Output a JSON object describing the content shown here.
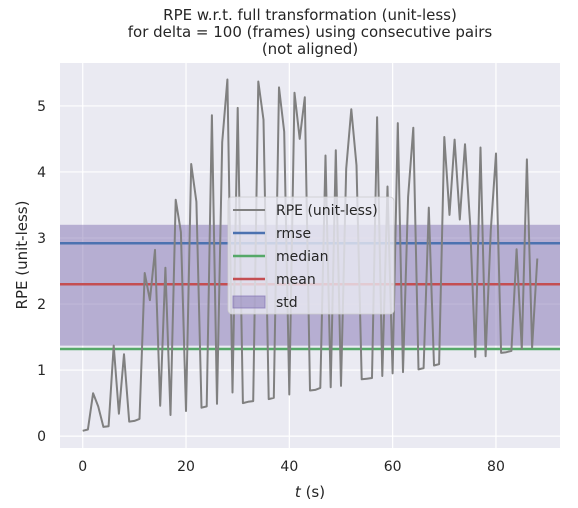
{
  "chart_data": {
    "type": "line",
    "title_lines": [
      "RPE w.r.t. full transformation (unit-less)",
      "for delta = 100 (frames) using consecutive pairs",
      "(not aligned)"
    ],
    "xlabel_italic": "t",
    "xlabel_rest": " (s)",
    "ylabel": "RPE (unit-less)",
    "xlim": [
      -4.4,
      92.4
    ],
    "ylim": [
      -0.18,
      5.65
    ],
    "xticks": [
      0,
      20,
      40,
      60,
      80
    ],
    "yticks": [
      0,
      1,
      2,
      3,
      4,
      5
    ],
    "grid": true,
    "background": "#eaeaf2",
    "series": [
      {
        "name": "RPE (unit-less)",
        "color": "#808080",
        "x": [
          0,
          1,
          2,
          3,
          4,
          5,
          6,
          7,
          8,
          9,
          10,
          11,
          12,
          13,
          14,
          15,
          16,
          17,
          18,
          19,
          20,
          21,
          22,
          23,
          24,
          25,
          26,
          27,
          28,
          29,
          30,
          31,
          32,
          33,
          34,
          35,
          36,
          37,
          38,
          39,
          40,
          41,
          42,
          43,
          44,
          45,
          46,
          47,
          48,
          49,
          50,
          51,
          52,
          53,
          54,
          55,
          56,
          57,
          58,
          59,
          60,
          61,
          62,
          63,
          64,
          65,
          66,
          67,
          68,
          69,
          70,
          71,
          72,
          73,
          74,
          75,
          76,
          77,
          78,
          79,
          80,
          81,
          82,
          83,
          84,
          85,
          86,
          87,
          88
        ],
        "y": [
          0.08,
          0.1,
          0.65,
          0.45,
          0.14,
          0.15,
          1.37,
          0.34,
          1.24,
          0.22,
          0.23,
          0.26,
          2.47,
          2.06,
          2.82,
          0.46,
          2.55,
          0.32,
          3.58,
          3.09,
          0.38,
          4.12,
          3.55,
          0.43,
          0.45,
          4.86,
          0.49,
          4.45,
          5.4,
          0.66,
          4.97,
          0.5,
          0.52,
          0.53,
          5.37,
          4.79,
          0.56,
          0.58,
          5.28,
          4.61,
          0.63,
          5.2,
          4.5,
          5.13,
          0.69,
          0.7,
          0.73,
          4.25,
          0.74,
          4.33,
          0.76,
          4.05,
          4.95,
          4.1,
          0.86,
          0.87,
          0.88,
          4.83,
          0.91,
          3.78,
          0.95,
          4.74,
          0.97,
          3.62,
          4.67,
          1.01,
          1.03,
          3.46,
          1.07,
          1.09,
          4.53,
          3.35,
          4.49,
          3.28,
          4.42,
          3.22,
          1.2,
          4.37,
          1.21,
          3.12,
          4.28,
          1.26,
          1.27,
          1.29,
          2.83,
          1.32,
          4.19,
          1.34,
          2.69
        ]
      }
    ],
    "stats": {
      "rmse": {
        "label": "rmse",
        "value": 2.92,
        "color": "#4c72b0"
      },
      "median": {
        "label": "median",
        "value": 1.32,
        "color": "#55a868"
      },
      "mean": {
        "label": "mean",
        "value": 2.3,
        "color": "#c44e52"
      },
      "std": {
        "label": "std",
        "low": 1.37,
        "high": 3.2,
        "color": "#8172b2"
      }
    },
    "legend_position": "center",
    "legend": [
      "RPE (unit-less)",
      "rmse",
      "median",
      "mean",
      "std"
    ]
  }
}
